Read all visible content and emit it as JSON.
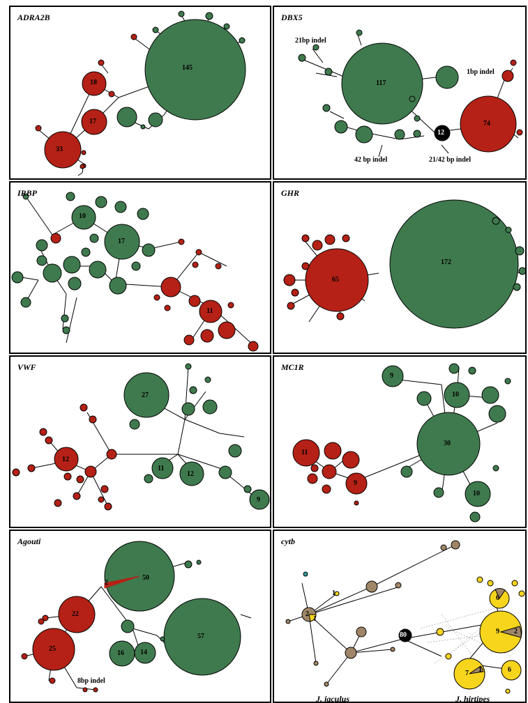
{
  "colors": {
    "green": "#3f7a4e",
    "red": "#b52116",
    "black": "#000000",
    "yellow": "#f7d51c",
    "brown": "#a08668",
    "teal": "#2f9b96"
  },
  "panels": {
    "adra2b": {
      "title": "ADRA2B",
      "labels": {
        "n145": "145",
        "n18": "18",
        "n17": "17",
        "n33": "33"
      }
    },
    "dbx5": {
      "title": "DBX5",
      "labels": {
        "n117": "117",
        "n74": "74",
        "n12": "12"
      },
      "notes": {
        "indel21": "21bp indel",
        "indel1": "1bp indel",
        "indel42": "42 bp indel",
        "indel2142": "21/42 bp indel"
      }
    },
    "irbp": {
      "title": "IRBP",
      "labels": {
        "n10": "10",
        "n17": "17",
        "n11": "11"
      }
    },
    "ghr": {
      "title": "GHR",
      "labels": {
        "n65": "65",
        "n172": "172"
      }
    },
    "vwf": {
      "title": "VWF",
      "labels": {
        "n27": "27",
        "n12r": "12",
        "n11": "11",
        "n12g": "12",
        "n9": "9"
      }
    },
    "mc1r": {
      "title": "MC1R",
      "labels": {
        "n9top": "9",
        "n10top": "10",
        "n30": "30",
        "n11": "11",
        "n9red": "9",
        "n10bot": "10"
      }
    },
    "agouti": {
      "title": "Agouti",
      "labels": {
        "n50": "50",
        "n2": "2",
        "n22": "22",
        "n25": "25",
        "n57": "57",
        "n16": "16",
        "n14": "14"
      },
      "notes": {
        "indel8": "8bp indel"
      }
    },
    "cytb": {
      "title": "cytb",
      "labels": {
        "n80": "80",
        "n2": "2",
        "n1a": "1",
        "n1b": "1",
        "n6a": "6",
        "n9": "9",
        "n2b": "2",
        "n7": "7",
        "n1c": "1",
        "n6b": "6"
      },
      "species": {
        "left": "J. jaculus",
        "right": "J. hirtipes"
      }
    }
  }
}
